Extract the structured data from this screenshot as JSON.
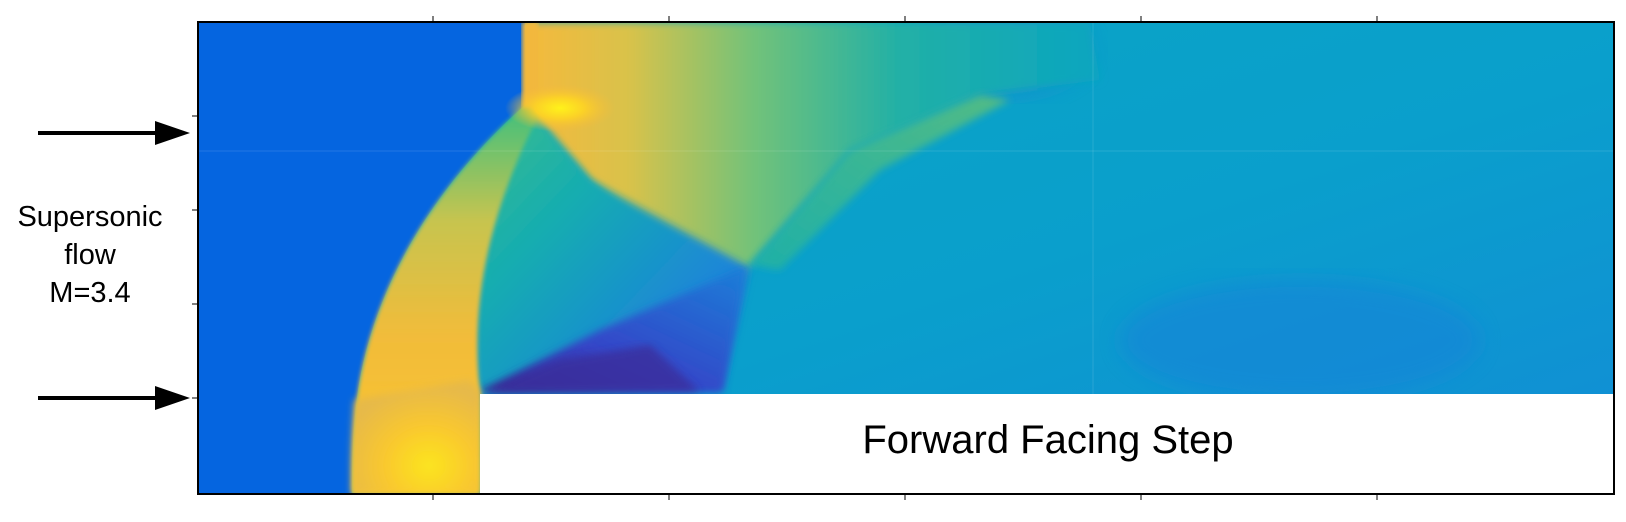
{
  "inflow": {
    "line1": "Supersonic",
    "line2": "flow",
    "line3": "M=3.4"
  },
  "step": {
    "label": "Forward Facing Step"
  },
  "colors": {
    "freestream": "#0565e0",
    "shocked_hot": "#f9c52f",
    "hot_spot": "#fbee16",
    "mid_teal": "#0aaab8",
    "cold_dark": "#3a2d9c",
    "step_fill": "#ffffff",
    "frame": "#000000",
    "arrow": "#000000"
  }
}
